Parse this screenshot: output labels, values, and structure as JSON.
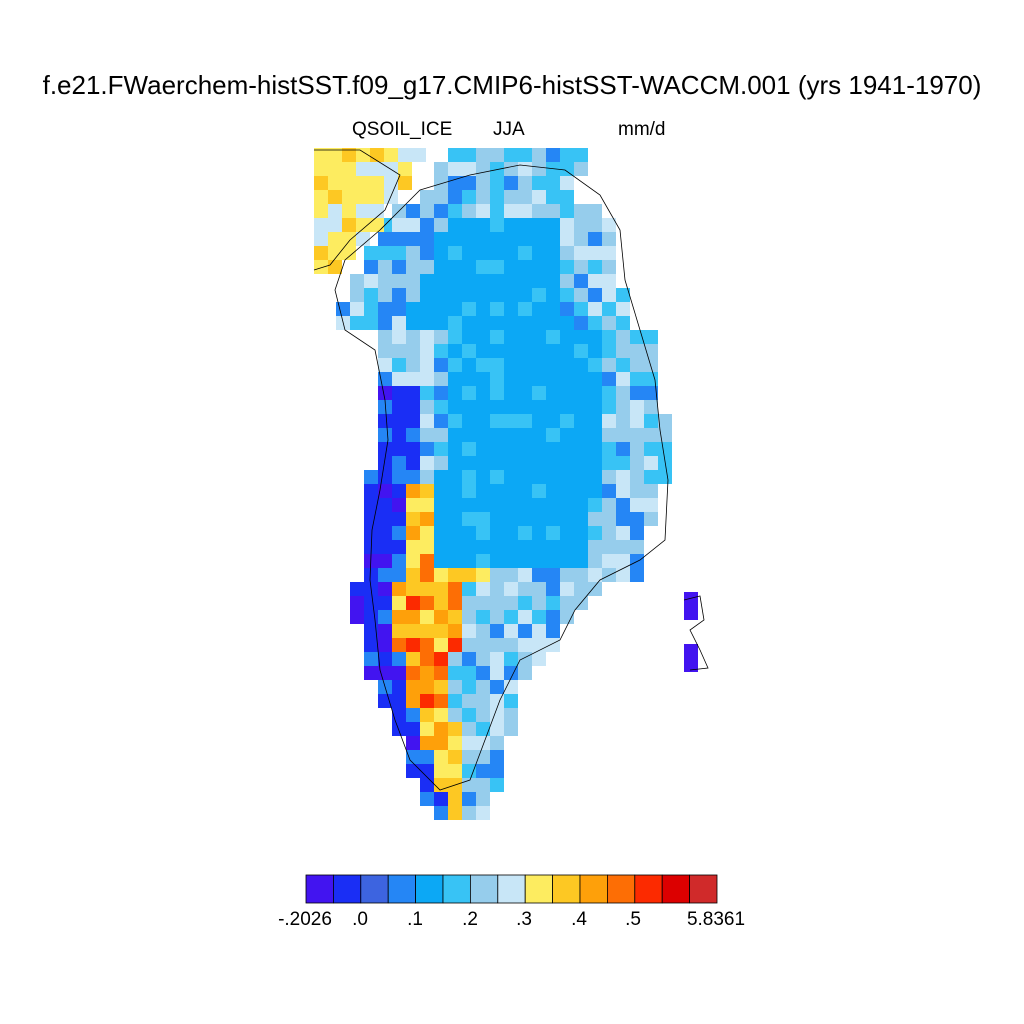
{
  "title": "f.e21.FWaerchem-histSST.f09_g17.CMIP6-histSST-WACCM.001 (yrs 1941-1970)",
  "subtitle": {
    "variable": "QSOIL_ICE",
    "season": "JJA",
    "units": "mm/d"
  },
  "colorbar": {
    "colors": [
      "#4214f0",
      "#1a2ef5",
      "#3d64e0",
      "#2586f5",
      "#0ca8f5",
      "#38c3f5",
      "#96cdec",
      "#c8e6f7",
      "#fdec60",
      "#fdc823",
      "#fea00a",
      "#fd6e05",
      "#fc2a00",
      "#dc0000",
      "#d02a2a"
    ],
    "labels": [
      "-.2026",
      ".0",
      ".1",
      ".2",
      ".3",
      ".4",
      ".5",
      "5.8361"
    ]
  },
  "map_data": {
    "region": "Greenland",
    "description_colors": "max ice-soil flux along southwest coast (orange/red), interior ~.1 (blue)"
  }
}
